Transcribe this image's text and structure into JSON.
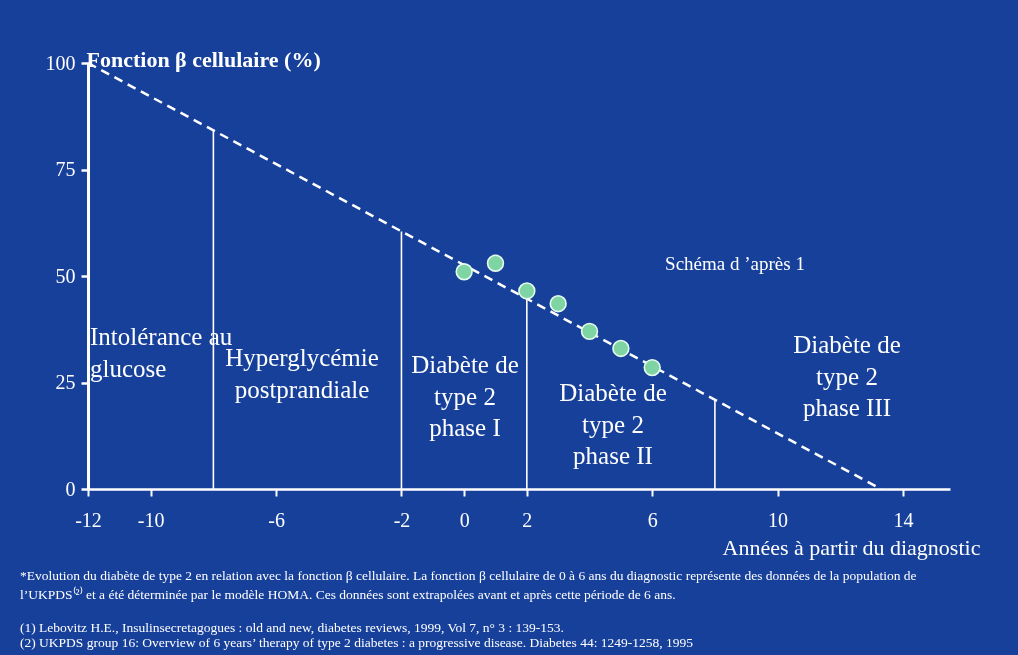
{
  "chart_data": {
    "type": "line",
    "ylabel": "Fonction β cellulaire (%)",
    "xlabel": "Années à partir du diagnostic",
    "xlim": [
      -12,
      15.5
    ],
    "ylim": [
      0,
      100
    ],
    "xticks": [
      -12,
      -10,
      -6,
      -2,
      0,
      2,
      6,
      10,
      14
    ],
    "yticks": [
      0,
      25,
      50,
      75,
      100
    ],
    "grid": false,
    "series": [
      {
        "x": [
          -12,
          13.3
        ],
        "values": [
          100,
          0
        ],
        "color": "#ffffff",
        "line_style": "dashed",
        "marker": "none"
      },
      {
        "type": "scatter",
        "x": [
          0,
          1,
          2,
          3,
          4,
          5,
          6
        ],
        "values": [
          51,
          53,
          46.5,
          43.5,
          37,
          33,
          28.5
        ],
        "color": "#7fd4a4",
        "marker": "circle"
      }
    ],
    "ref_lines": [
      {
        "axis": "x",
        "value": -8,
        "color": "#ffffff"
      },
      {
        "axis": "x",
        "value": -2,
        "color": "#ffffff"
      },
      {
        "axis": "x",
        "value": 2,
        "color": "#ffffff"
      },
      {
        "axis": "x",
        "value": 8,
        "color": "#ffffff"
      }
    ],
    "annotations": [
      "Intolérance au\nglucose",
      "Hyperglycémie\npostprandiale",
      "Diabète de\ntype 2\nphase I",
      "Diabète de\ntype 2\nphase II",
      "Diabète de\ntype 2\nphase III",
      "Schéma d ’après 1",
      "*Evolution du diabète de type 2 en relation avec la fonction β cellulaire. La fonction β cellulaire de 0 à 6 ans du diagnostic représente des données de la population de\nl’UKPDS⁽²⁾ et a été déterminée par le modèle HOMA.  Ces données sont extrapolées avant et après cette période de 6 ans.",
      "(1) Lebovitz H.E., Insulinsecretagogues : old and new, diabetes reviews, 1999, Vol 7, n° 3 : 139-153.",
      "(2) UKPDS group 16: Overview of 6 years’ therapy of type 2 diabetes : a progressive disease. Diabetes 44: 1249-1258, 1995"
    ]
  }
}
